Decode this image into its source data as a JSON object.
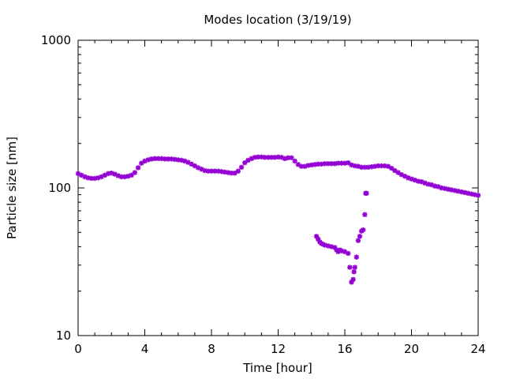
{
  "chart_data": {
    "type": "scatter",
    "title": "Modes location (3/19/19)",
    "xlabel": "Time [hour]",
    "ylabel": "Particle size [nm]",
    "xlim": [
      0,
      24
    ],
    "ylim": [
      10,
      1000
    ],
    "yscale": "log",
    "grid": false,
    "legend": "none",
    "marker_color": "#9400d3",
    "xticks": [
      0,
      4,
      8,
      12,
      16,
      20,
      24
    ],
    "xtick_labels": [
      "0",
      "4",
      "8",
      "12",
      "16",
      "20",
      "24"
    ],
    "yticks": [
      10,
      100,
      1000
    ],
    "ytick_labels": [
      "10",
      "100",
      "1000"
    ],
    "series": [
      {
        "name": "",
        "points": [
          [
            0.0,
            125
          ],
          [
            0.2,
            122
          ],
          [
            0.4,
            119
          ],
          [
            0.6,
            117
          ],
          [
            0.8,
            116
          ],
          [
            1.0,
            116
          ],
          [
            1.2,
            117
          ],
          [
            1.4,
            119
          ],
          [
            1.6,
            122
          ],
          [
            1.8,
            125
          ],
          [
            2.0,
            126
          ],
          [
            2.2,
            124
          ],
          [
            2.4,
            121
          ],
          [
            2.6,
            119
          ],
          [
            2.8,
            119
          ],
          [
            3.0,
            120
          ],
          [
            3.2,
            122
          ],
          [
            3.4,
            127
          ],
          [
            3.6,
            137
          ],
          [
            3.8,
            147
          ],
          [
            4.0,
            152
          ],
          [
            4.2,
            155
          ],
          [
            4.4,
            157
          ],
          [
            4.6,
            158
          ],
          [
            4.8,
            158
          ],
          [
            5.0,
            158
          ],
          [
            5.2,
            157
          ],
          [
            5.4,
            157
          ],
          [
            5.6,
            157
          ],
          [
            5.8,
            156
          ],
          [
            6.0,
            155
          ],
          [
            6.2,
            154
          ],
          [
            6.4,
            152
          ],
          [
            6.6,
            149
          ],
          [
            6.8,
            145
          ],
          [
            7.0,
            141
          ],
          [
            7.2,
            137
          ],
          [
            7.4,
            134
          ],
          [
            7.6,
            131
          ],
          [
            7.8,
            130
          ],
          [
            8.0,
            130
          ],
          [
            8.2,
            130
          ],
          [
            8.4,
            130
          ],
          [
            8.6,
            129
          ],
          [
            8.8,
            128
          ],
          [
            9.0,
            127
          ],
          [
            9.2,
            126
          ],
          [
            9.4,
            126
          ],
          [
            9.6,
            130
          ],
          [
            9.8,
            138
          ],
          [
            10.0,
            148
          ],
          [
            10.2,
            154
          ],
          [
            10.4,
            158
          ],
          [
            10.6,
            161
          ],
          [
            10.8,
            162
          ],
          [
            11.0,
            162
          ],
          [
            11.2,
            161
          ],
          [
            11.4,
            161
          ],
          [
            11.6,
            161
          ],
          [
            11.8,
            161
          ],
          [
            12.0,
            162
          ],
          [
            12.2,
            161
          ],
          [
            12.4,
            158
          ],
          [
            12.6,
            160
          ],
          [
            12.8,
            160
          ],
          [
            13.0,
            152
          ],
          [
            13.2,
            144
          ],
          [
            13.4,
            140
          ],
          [
            13.6,
            140
          ],
          [
            13.8,
            142
          ],
          [
            14.0,
            143
          ],
          [
            14.2,
            144
          ],
          [
            14.4,
            145
          ],
          [
            14.6,
            145
          ],
          [
            14.8,
            146
          ],
          [
            15.0,
            146
          ],
          [
            15.2,
            146
          ],
          [
            15.4,
            146
          ],
          [
            15.6,
            147
          ],
          [
            15.8,
            147
          ],
          [
            16.0,
            147
          ],
          [
            16.2,
            148
          ],
          [
            16.4,
            143
          ],
          [
            16.6,
            141
          ],
          [
            16.8,
            140
          ],
          [
            17.0,
            138
          ],
          [
            17.2,
            138
          ],
          [
            17.4,
            138
          ],
          [
            17.6,
            139
          ],
          [
            17.8,
            140
          ],
          [
            18.0,
            141
          ],
          [
            18.2,
            141
          ],
          [
            18.4,
            141
          ],
          [
            18.6,
            140
          ],
          [
            18.8,
            136
          ],
          [
            19.0,
            131
          ],
          [
            19.2,
            127
          ],
          [
            19.4,
            123
          ],
          [
            19.6,
            120
          ],
          [
            19.8,
            117
          ],
          [
            20.0,
            115
          ],
          [
            20.2,
            113
          ],
          [
            20.4,
            111
          ],
          [
            20.6,
            110
          ],
          [
            20.8,
            108
          ],
          [
            21.0,
            106
          ],
          [
            21.2,
            105
          ],
          [
            21.4,
            103
          ],
          [
            21.6,
            102
          ],
          [
            21.8,
            100
          ],
          [
            22.0,
            99
          ],
          [
            22.2,
            98
          ],
          [
            22.4,
            97
          ],
          [
            22.6,
            96
          ],
          [
            22.8,
            95
          ],
          [
            23.0,
            94
          ],
          [
            23.2,
            93
          ],
          [
            23.4,
            92
          ],
          [
            23.6,
            91
          ],
          [
            23.8,
            90
          ],
          [
            24.0,
            89
          ]
        ]
      },
      {
        "name": "",
        "points": [
          [
            14.3,
            47
          ],
          [
            14.4,
            45
          ],
          [
            14.5,
            43
          ],
          [
            14.6,
            42
          ],
          [
            14.7,
            41.5
          ],
          [
            14.8,
            41
          ],
          [
            15.0,
            40.5
          ],
          [
            15.2,
            40
          ],
          [
            15.4,
            39.5
          ],
          [
            15.5,
            38
          ],
          [
            15.6,
            37
          ],
          [
            15.7,
            38
          ],
          [
            15.8,
            37.5
          ],
          [
            16.0,
            37
          ],
          [
            16.2,
            36
          ],
          [
            16.3,
            29
          ],
          [
            16.4,
            23
          ],
          [
            16.5,
            24
          ],
          [
            16.55,
            27
          ],
          [
            16.6,
            29
          ],
          [
            16.7,
            34
          ],
          [
            16.8,
            44
          ],
          [
            16.9,
            47
          ],
          [
            17.0,
            51
          ],
          [
            17.1,
            52
          ],
          [
            17.2,
            66
          ],
          [
            17.25,
            92
          ],
          [
            17.3,
            92
          ]
        ]
      }
    ]
  }
}
